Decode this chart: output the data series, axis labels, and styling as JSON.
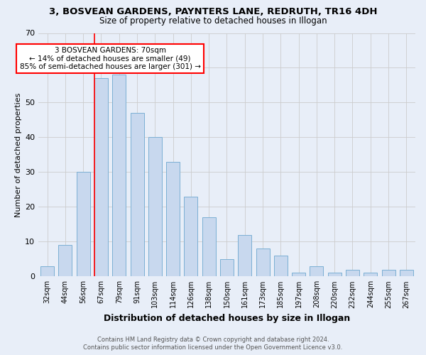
{
  "title1": "3, BOSVEAN GARDENS, PAYNTERS LANE, REDRUTH, TR16 4DH",
  "title2": "Size of property relative to detached houses in Illogan",
  "xlabel": "Distribution of detached houses by size in Illogan",
  "ylabel": "Number of detached properties",
  "bar_labels": [
    "32sqm",
    "44sqm",
    "56sqm",
    "67sqm",
    "79sqm",
    "91sqm",
    "103sqm",
    "114sqm",
    "126sqm",
    "138sqm",
    "150sqm",
    "161sqm",
    "173sqm",
    "185sqm",
    "197sqm",
    "208sqm",
    "220sqm",
    "232sqm",
    "244sqm",
    "255sqm",
    "267sqm"
  ],
  "bar_values": [
    3,
    9,
    30,
    57,
    58,
    47,
    40,
    33,
    23,
    17,
    5,
    12,
    8,
    6,
    1,
    3,
    1,
    2,
    1,
    2,
    2
  ],
  "bar_color": "#c8d8ee",
  "bar_edge_color": "#7bafd4",
  "vline_index": 3,
  "vline_color": "red",
  "ylim": [
    0,
    70
  ],
  "yticks": [
    0,
    10,
    20,
    30,
    40,
    50,
    60,
    70
  ],
  "annotation_title": "3 BOSVEAN GARDENS: 70sqm",
  "annotation_line1": "← 14% of detached houses are smaller (49)",
  "annotation_line2": "85% of semi-detached houses are larger (301) →",
  "annotation_box_color": "white",
  "annotation_box_edge": "red",
  "footer1": "Contains HM Land Registry data © Crown copyright and database right 2024.",
  "footer2": "Contains public sector information licensed under the Open Government Licence v3.0.",
  "grid_color": "#cccccc",
  "background_color": "#e8eef8",
  "title1_fontsize": 9.5,
  "title2_fontsize": 8.5,
  "xlabel_fontsize": 9,
  "ylabel_fontsize": 8,
  "tick_fontsize": 7,
  "footer_fontsize": 6,
  "annotation_fontsize": 7.5
}
